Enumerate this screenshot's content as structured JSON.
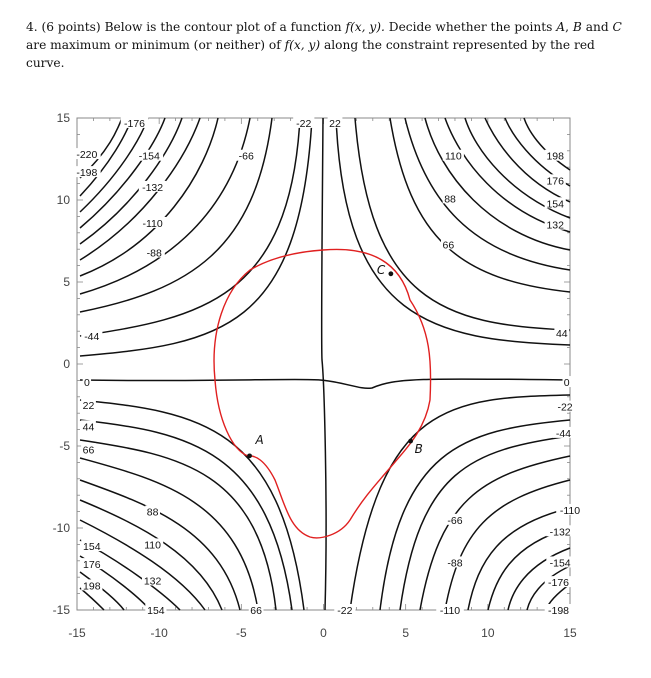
{
  "problem": {
    "number": "4.",
    "points": "(6 points)",
    "line1": "Below is the contour plot of a function",
    "func": "f(x, y).",
    "line1b": "Decide whether the points",
    "A": "A",
    "comma": ",",
    "B": "B",
    "and": "and",
    "C": "C",
    "line2": "are maximum or minimum (or neither) of",
    "func2": "f(x, y)",
    "line2b": "along the constraint represented by the red",
    "line3": "curve."
  },
  "chart_data": {
    "type": "contour",
    "xlim": [
      -15,
      15
    ],
    "ylim": [
      -15,
      15
    ],
    "x_ticks": [
      "-15",
      "-10",
      "-5",
      "0",
      "5",
      "10",
      "15"
    ],
    "y_ticks": [
      "15",
      "10",
      "5",
      "0",
      "-5",
      "-10",
      "-15"
    ],
    "x_tick_values": [
      -15,
      -10,
      -5,
      0,
      5,
      10,
      15
    ],
    "y_tick_values": [
      15,
      10,
      5,
      0,
      -5,
      -10,
      -15
    ],
    "contour_labels": [
      {
        "text": "-176",
        "x": -11.5,
        "y": 14.7
      },
      {
        "text": "-220",
        "x": -14.4,
        "y": 12.8
      },
      {
        "text": "-154",
        "x": -10.6,
        "y": 12.7
      },
      {
        "text": "-198",
        "x": -14.4,
        "y": 11.7
      },
      {
        "text": "-66",
        "x": -4.7,
        "y": 12.7
      },
      {
        "text": "-22",
        "x": -1.2,
        "y": 14.7
      },
      {
        "text": "22",
        "x": 0.7,
        "y": 14.7
      },
      {
        "text": "110",
        "x": 7.9,
        "y": 12.7
      },
      {
        "text": "198",
        "x": 14.1,
        "y": 12.7
      },
      {
        "text": "-132",
        "x": -10.4,
        "y": 10.8
      },
      {
        "text": "176",
        "x": 14.1,
        "y": 11.2
      },
      {
        "text": "88",
        "x": 7.7,
        "y": 10.1
      },
      {
        "text": "154",
        "x": 14.1,
        "y": 9.8
      },
      {
        "text": "-110",
        "x": -10.4,
        "y": 8.6
      },
      {
        "text": "132",
        "x": 14.1,
        "y": 8.5
      },
      {
        "text": "66",
        "x": 7.6,
        "y": 7.3
      },
      {
        "text": "-88",
        "x": -10.3,
        "y": 6.8
      },
      {
        "text": "-44",
        "x": -14.1,
        "y": 1.7
      },
      {
        "text": "44",
        "x": 14.5,
        "y": 1.9
      },
      {
        "text": "0",
        "x": -14.4,
        "y": -1.1
      },
      {
        "text": "0",
        "x": 14.8,
        "y": -1.1
      },
      {
        "text": "22",
        "x": -14.3,
        "y": -2.5
      },
      {
        "text": "-22",
        "x": 14.7,
        "y": -2.6
      },
      {
        "text": "44",
        "x": -14.3,
        "y": -3.8
      },
      {
        "text": "-44",
        "x": 14.6,
        "y": -4.2
      },
      {
        "text": "66",
        "x": -14.3,
        "y": -5.2
      },
      {
        "text": "88",
        "x": -10.4,
        "y": -9.0
      },
      {
        "text": "-66",
        "x": 8.0,
        "y": -9.5
      },
      {
        "text": "-110",
        "x": 15.0,
        "y": -8.9
      },
      {
        "text": "110",
        "x": -10.4,
        "y": -11.0
      },
      {
        "text": "-132",
        "x": 14.4,
        "y": -10.2
      },
      {
        "text": "154",
        "x": -14.1,
        "y": -11.1
      },
      {
        "text": "-88",
        "x": 8.0,
        "y": -12.1
      },
      {
        "text": "-154",
        "x": 14.4,
        "y": -12.1
      },
      {
        "text": "176",
        "x": -14.1,
        "y": -12.2
      },
      {
        "text": "132",
        "x": -10.4,
        "y": -13.2
      },
      {
        "text": "-176",
        "x": 14.3,
        "y": -13.3
      },
      {
        "text": "198",
        "x": -14.1,
        "y": -13.5
      },
      {
        "text": "154",
        "x": -10.2,
        "y": -15.0
      },
      {
        "text": "66",
        "x": -4.1,
        "y": -15.0
      },
      {
        "text": "-22",
        "x": 1.3,
        "y": -15.0
      },
      {
        "text": "-110",
        "x": 7.7,
        "y": -15.0
      },
      {
        "text": "-198",
        "x": 14.3,
        "y": -15.0
      }
    ],
    "points": [
      {
        "name": "A",
        "x": -4.5,
        "y": -5.6
      },
      {
        "name": "B",
        "x": 5.3,
        "y": -4.7
      },
      {
        "name": "C",
        "x": 4.1,
        "y": 5.5
      }
    ],
    "colors": {
      "contour": "#111111",
      "constraint": "#e02020",
      "frame": "#888888"
    }
  }
}
